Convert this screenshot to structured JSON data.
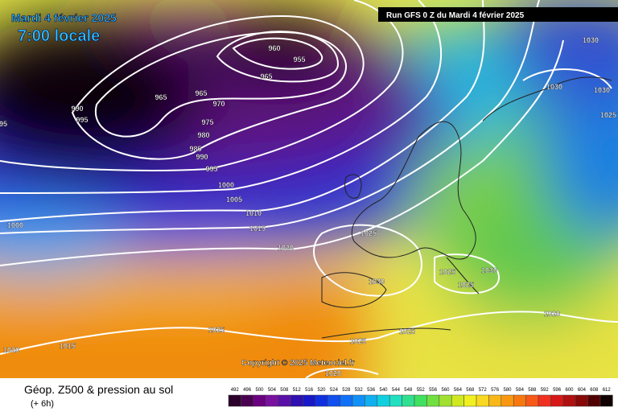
{
  "header": {
    "date": "Mardi 4 février 2025",
    "time": "7:00 locale",
    "run": "Run GFS 0 Z du Mardi 4 février 2025"
  },
  "copyright": "Copyright © 2025 Meteociel.fr",
  "footer": {
    "title": "Géop. Z500 & pression au sol",
    "subtitle": "(+ 6h)"
  },
  "scale": {
    "labels": [
      492,
      496,
      500,
      504,
      508,
      512,
      516,
      520,
      524,
      528,
      532,
      536,
      540,
      544,
      548,
      552,
      556,
      560,
      564,
      568,
      572,
      576,
      580,
      584,
      588,
      592,
      596,
      600,
      604,
      608,
      612
    ]
  },
  "isobar_labels": [
    960,
    955,
    965,
    965,
    965,
    970,
    975,
    980,
    985,
    990,
    990,
    995,
    995,
    1000,
    1005,
    1010,
    1015,
    1020,
    1025,
    1030,
    1025,
    1025,
    1030,
    1020,
    1025,
    1025,
    1025,
    1020,
    1015,
    1020,
    1030,
    1030,
    1030,
    1025,
    1000,
    95
  ]
}
